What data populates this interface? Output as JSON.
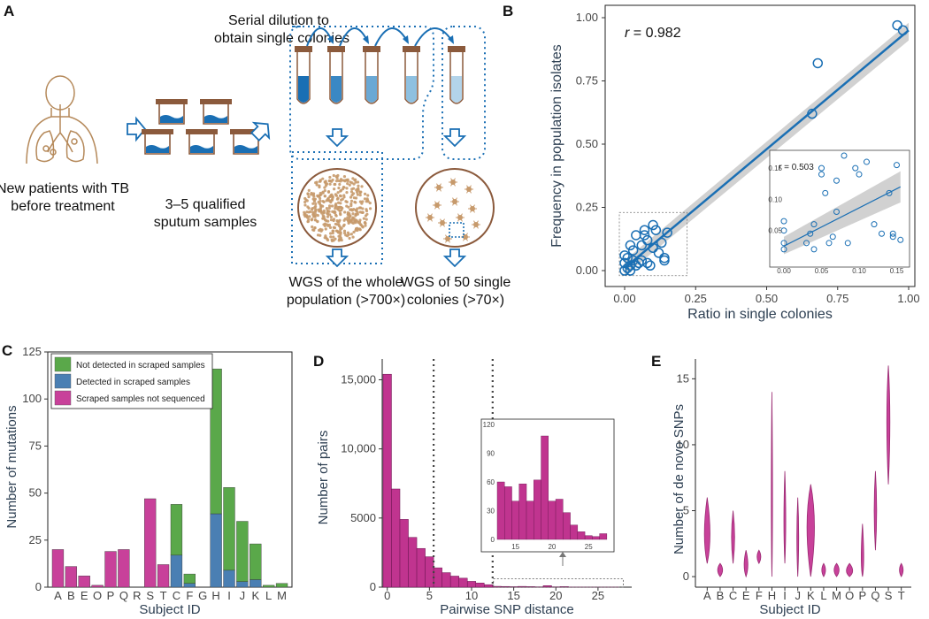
{
  "panels": {
    "A": {
      "label": "A",
      "captions": {
        "patient_1": "New patients with TB",
        "patient_2": "before treatment",
        "sputum_1": "3–5 qualified",
        "sputum_2": "sputum samples",
        "dilution_1": "Serial dilution to",
        "dilution_2": "obtain single colonies",
        "wgs_pop_1": "WGS of the whole",
        "wgs_pop_2": "population (>700×)",
        "wgs_sc_1": "WGS of 50 single",
        "wgs_sc_2": "colonies (>70×)"
      },
      "icons": [
        "patient-lungs-icon",
        "sputum-container-icon",
        "test-tube-icon",
        "petri-dish-icon",
        "arrow-icon"
      ],
      "colors": {
        "accent": "#1a6fb4",
        "tan": "#b5895a",
        "lid": "#8b5a3c"
      }
    },
    "B": {
      "label": "B",
      "r_label": "r",
      "r_value": " = 0.982",
      "inset_r_label": "r",
      "inset_r_value": " = 0.503",
      "xlabel": "Ratio in single colonies",
      "ylabel": "Frequency in population isolates",
      "xticks": [
        "0.00",
        "0.25",
        "0.50",
        "0.75",
        "1.00"
      ],
      "yticks": [
        "0.00",
        "0.25",
        "0.50",
        "0.75",
        "1.00"
      ],
      "inset_xticks": [
        "0.00",
        "0.05",
        "0.10",
        "0.15"
      ],
      "inset_yticks": [
        "0.05",
        "0.10",
        "0.15"
      ]
    },
    "C": {
      "label": "C",
      "ylabel": "Number of mutations",
      "xlabel": "Subject ID",
      "yticks": [
        "0",
        "25",
        "50",
        "75",
        "100",
        "125"
      ],
      "legend": [
        "Not detected in scraped samples",
        "Detected in scraped samples",
        "Scraped samples not sequenced"
      ]
    },
    "D": {
      "label": "D",
      "ylabel": "Number of pairs",
      "xlabel": "Pairwise SNP distance",
      "yticks": [
        "0",
        "5000",
        "10,000",
        "15,000"
      ],
      "xticks": [
        "0",
        "5",
        "10",
        "15",
        "20",
        "25"
      ],
      "inset_yticks": [
        "0",
        "30",
        "60",
        "90",
        "120"
      ],
      "inset_xticks": [
        "15",
        "20",
        "25"
      ]
    },
    "E": {
      "label": "E",
      "ylabel": "Number of de novo SNPs",
      "xlabel": "Subject ID",
      "yticks": [
        "0",
        "5",
        "10",
        "15"
      ]
    }
  },
  "chart_data": [
    {
      "panel": "B",
      "type": "scatter",
      "xlim": [
        0,
        1
      ],
      "ylim": [
        0,
        1
      ],
      "points": [
        {
          "x": 0.96,
          "y": 0.97
        },
        {
          "x": 0.98,
          "y": 0.95
        },
        {
          "x": 0.68,
          "y": 0.82
        },
        {
          "x": 0.66,
          "y": 0.62
        },
        {
          "x": 0.0,
          "y": 0.0
        },
        {
          "x": 0.01,
          "y": 0.01
        },
        {
          "x": 0.02,
          "y": 0.02
        },
        {
          "x": 0.0,
          "y": 0.03
        },
        {
          "x": 0.02,
          "y": 0.0
        },
        {
          "x": 0.03,
          "y": 0.04
        },
        {
          "x": 0.04,
          "y": 0.02
        },
        {
          "x": 0.01,
          "y": 0.05
        },
        {
          "x": 0.0,
          "y": 0.06
        },
        {
          "x": 0.05,
          "y": 0.03
        },
        {
          "x": 0.03,
          "y": 0.08
        },
        {
          "x": 0.06,
          "y": 0.1
        },
        {
          "x": 0.06,
          "y": 0.04
        },
        {
          "x": 0.07,
          "y": 0.14
        },
        {
          "x": 0.07,
          "y": 0.16
        },
        {
          "x": 0.09,
          "y": 0.02
        },
        {
          "x": 0.08,
          "y": 0.12
        },
        {
          "x": 0.1,
          "y": 0.09
        },
        {
          "x": 0.11,
          "y": 0.16
        },
        {
          "x": 0.12,
          "y": 0.07
        },
        {
          "x": 0.13,
          "y": 0.11
        },
        {
          "x": 0.14,
          "y": 0.05
        },
        {
          "x": 0.14,
          "y": 0.04
        },
        {
          "x": 0.15,
          "y": 0.15
        },
        {
          "x": 0.1,
          "y": 0.18
        },
        {
          "x": 0.02,
          "y": 0.1
        },
        {
          "x": 0.04,
          "y": 0.14
        },
        {
          "x": 0.08,
          "y": 0.03
        }
      ],
      "fit": {
        "x": [
          0,
          1
        ],
        "y": [
          0.01,
          0.95
        ]
      },
      "inset": {
        "type": "scatter",
        "xlim": [
          0,
          0.16
        ],
        "ylim": [
          0,
          0.17
        ],
        "points": [
          {
            "x": 0.0,
            "y": 0.03
          },
          {
            "x": 0.0,
            "y": 0.02
          },
          {
            "x": 0.0,
            "y": 0.05
          },
          {
            "x": 0.0,
            "y": 0.065
          },
          {
            "x": 0.03,
            "y": 0.03
          },
          {
            "x": 0.035,
            "y": 0.045
          },
          {
            "x": 0.04,
            "y": 0.02
          },
          {
            "x": 0.04,
            "y": 0.06
          },
          {
            "x": 0.05,
            "y": 0.14
          },
          {
            "x": 0.05,
            "y": 0.15
          },
          {
            "x": 0.055,
            "y": 0.11
          },
          {
            "x": 0.06,
            "y": 0.03
          },
          {
            "x": 0.065,
            "y": 0.04
          },
          {
            "x": 0.07,
            "y": 0.13
          },
          {
            "x": 0.07,
            "y": 0.08
          },
          {
            "x": 0.08,
            "y": 0.17
          },
          {
            "x": 0.085,
            "y": 0.03
          },
          {
            "x": 0.095,
            "y": 0.15
          },
          {
            "x": 0.1,
            "y": 0.14
          },
          {
            "x": 0.11,
            "y": 0.16
          },
          {
            "x": 0.12,
            "y": 0.06
          },
          {
            "x": 0.13,
            "y": 0.045
          },
          {
            "x": 0.14,
            "y": 0.11
          },
          {
            "x": 0.145,
            "y": 0.04
          },
          {
            "x": 0.15,
            "y": 0.155
          },
          {
            "x": 0.155,
            "y": 0.035
          },
          {
            "x": 0.145,
            "y": 0.045
          }
        ],
        "fit": {
          "x": [
            0,
            0.155
          ],
          "y": [
            0.025,
            0.12
          ]
        }
      }
    },
    {
      "panel": "C",
      "type": "bar",
      "categories": [
        "A",
        "B",
        "E",
        "O",
        "P",
        "Q",
        "R",
        "S",
        "T",
        "C",
        "F",
        "G",
        "H",
        "I",
        "J",
        "K",
        "L",
        "M"
      ],
      "series": [
        {
          "name": "Scraped samples not sequenced",
          "values": [
            20,
            11,
            6,
            1,
            19,
            20,
            0,
            47,
            12,
            0,
            0,
            0,
            0,
            0,
            0,
            0,
            0,
            0
          ]
        },
        {
          "name": "Detected in scraped samples",
          "values": [
            0,
            0,
            0,
            0,
            0,
            0,
            0,
            0,
            0,
            17,
            2,
            0,
            39,
            9,
            3,
            4,
            0,
            0
          ]
        },
        {
          "name": "Not detected in scraped samples",
          "values": [
            0,
            0,
            0,
            0,
            0,
            0,
            0,
            0,
            0,
            27,
            5,
            0,
            77,
            44,
            32,
            19,
            1,
            2
          ]
        }
      ],
      "ylim": [
        0,
        125
      ]
    },
    {
      "panel": "D",
      "type": "bar",
      "x": [
        0,
        1,
        2,
        3,
        4,
        5,
        6,
        7,
        8,
        9,
        10,
        11,
        12,
        13,
        14,
        15,
        16,
        17,
        18,
        19,
        20,
        21,
        22,
        23,
        24,
        25,
        26,
        27
      ],
      "values": [
        15400,
        7100,
        4900,
        3600,
        2800,
        2200,
        1400,
        1050,
        800,
        650,
        420,
        300,
        180,
        60,
        50,
        35,
        55,
        40,
        25,
        110,
        25,
        40,
        15,
        12,
        5,
        5,
        5,
        8
      ],
      "ylim": [
        0,
        16500
      ],
      "vlines": [
        5.5,
        12.5
      ],
      "inset": {
        "type": "bar",
        "x": [
          13,
          14,
          15,
          16,
          17,
          18,
          19,
          20,
          21,
          22,
          23,
          24,
          25,
          26,
          27
        ],
        "values": [
          60,
          55,
          40,
          58,
          40,
          62,
          108,
          40,
          42,
          28,
          15,
          8,
          4,
          3,
          6
        ],
        "ylim": [
          0,
          120
        ]
      }
    },
    {
      "panel": "E",
      "type": "violin",
      "categories": [
        "A",
        "B",
        "C",
        "E",
        "F",
        "H",
        "I",
        "J",
        "K",
        "L",
        "M",
        "O",
        "P",
        "Q",
        "S",
        "T"
      ],
      "ranges": [
        [
          1,
          6
        ],
        [
          0,
          1
        ],
        [
          1,
          5
        ],
        [
          0,
          2
        ],
        [
          1,
          2
        ],
        [
          0,
          14
        ],
        [
          1,
          8
        ],
        [
          0,
          6
        ],
        [
          0,
          7
        ],
        [
          0,
          1
        ],
        [
          0,
          1
        ],
        [
          0,
          1
        ],
        [
          0,
          4
        ],
        [
          2,
          8
        ],
        [
          7,
          16
        ],
        [
          0,
          1
        ]
      ],
      "peaks": [
        3,
        0.5,
        3,
        0.8,
        1.5,
        5,
        4,
        3,
        4,
        0.5,
        0.5,
        0.4,
        1,
        5,
        12,
        0.5
      ],
      "widths": [
        0.9,
        0.8,
        0.5,
        0.6,
        0.6,
        0.2,
        0.3,
        0.3,
        1.2,
        0.6,
        0.8,
        1.0,
        0.4,
        0.4,
        0.5,
        0.6
      ],
      "ylim": [
        0,
        16.5
      ]
    }
  ]
}
